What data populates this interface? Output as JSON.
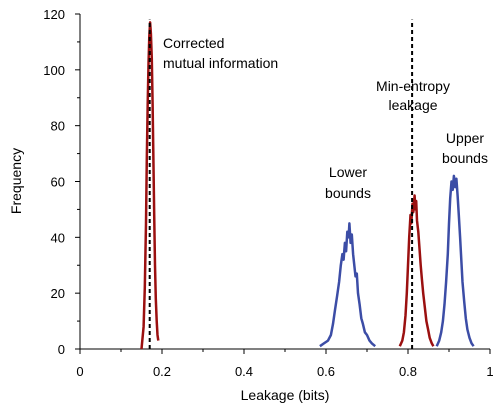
{
  "chart_data": {
    "type": "line",
    "xlabel": "Leakage (bits)",
    "ylabel": "Frequency",
    "xlim": [
      0,
      1
    ],
    "ylim": [
      0,
      120
    ],
    "x_ticks": [
      "0",
      "0.2",
      "0.4",
      "0.6",
      "0.8",
      "1"
    ],
    "y_ticks": [
      "0",
      "20",
      "40",
      "60",
      "80",
      "100",
      "120"
    ],
    "grid": false,
    "annotations": {
      "corrected_mi": [
        "Corrected",
        "mutual information"
      ],
      "min_entropy": [
        "Min-entropy",
        "leakage"
      ],
      "lower_bounds": [
        "Lower",
        "bounds"
      ],
      "upper_bounds": [
        "Upper",
        "bounds"
      ]
    },
    "reference_lines": [
      {
        "x": 0.17,
        "style": "dashed",
        "color": "#000000",
        "y_top": 118
      },
      {
        "x": 0.81,
        "style": "dashed",
        "color": "#000000",
        "y_top": 118
      }
    ],
    "colors": {
      "red": "#9b1010",
      "blue": "#3c4da6"
    },
    "series": [
      {
        "color": "#9b1010",
        "points": [
          [
            0.15,
            0
          ],
          [
            0.155,
            8
          ],
          [
            0.158,
            22
          ],
          [
            0.161,
            45
          ],
          [
            0.163,
            68
          ],
          [
            0.165,
            88
          ],
          [
            0.167,
            102
          ],
          [
            0.169,
            112
          ],
          [
            0.171,
            117
          ],
          [
            0.173,
            113
          ],
          [
            0.175,
            104
          ],
          [
            0.177,
            88
          ],
          [
            0.179,
            68
          ],
          [
            0.181,
            48
          ],
          [
            0.183,
            30
          ],
          [
            0.185,
            18
          ],
          [
            0.187,
            10
          ],
          [
            0.189,
            5
          ],
          [
            0.191,
            3
          ]
        ]
      },
      {
        "color": "#3c4da6",
        "points": [
          [
            0.585,
            1
          ],
          [
            0.595,
            2
          ],
          [
            0.605,
            3
          ],
          [
            0.612,
            5
          ],
          [
            0.617,
            9
          ],
          [
            0.622,
            14
          ],
          [
            0.627,
            19
          ],
          [
            0.632,
            24
          ],
          [
            0.636,
            30
          ],
          [
            0.64,
            34
          ],
          [
            0.643,
            32
          ],
          [
            0.646,
            38
          ],
          [
            0.649,
            35
          ],
          [
            0.652,
            42
          ],
          [
            0.655,
            40
          ],
          [
            0.657,
            45
          ],
          [
            0.66,
            38
          ],
          [
            0.663,
            41
          ],
          [
            0.666,
            34
          ],
          [
            0.669,
            30
          ],
          [
            0.672,
            26
          ],
          [
            0.675,
            27
          ],
          [
            0.678,
            20
          ],
          [
            0.682,
            16
          ],
          [
            0.686,
            11
          ],
          [
            0.69,
            9
          ],
          [
            0.695,
            6
          ],
          [
            0.7,
            5
          ],
          [
            0.706,
            3
          ],
          [
            0.712,
            2
          ],
          [
            0.72,
            1
          ]
        ]
      },
      {
        "color": "#9b1010",
        "points": [
          [
            0.78,
            1
          ],
          [
            0.786,
            3
          ],
          [
            0.79,
            6
          ],
          [
            0.794,
            12
          ],
          [
            0.797,
            20
          ],
          [
            0.8,
            30
          ],
          [
            0.803,
            40
          ],
          [
            0.806,
            48
          ],
          [
            0.808,
            45
          ],
          [
            0.811,
            52
          ],
          [
            0.813,
            49
          ],
          [
            0.816,
            55
          ],
          [
            0.818,
            50
          ],
          [
            0.82,
            53
          ],
          [
            0.822,
            46
          ],
          [
            0.825,
            42
          ],
          [
            0.828,
            36
          ],
          [
            0.831,
            30
          ],
          [
            0.834,
            25
          ],
          [
            0.837,
            20
          ],
          [
            0.841,
            15
          ],
          [
            0.845,
            10
          ],
          [
            0.849,
            7
          ],
          [
            0.853,
            4
          ],
          [
            0.858,
            2
          ],
          [
            0.862,
            1
          ]
        ]
      },
      {
        "color": "#3c4da6",
        "points": [
          [
            0.87,
            1
          ],
          [
            0.876,
            3
          ],
          [
            0.881,
            6
          ],
          [
            0.885,
            10
          ],
          [
            0.889,
            16
          ],
          [
            0.893,
            24
          ],
          [
            0.897,
            34
          ],
          [
            0.9,
            45
          ],
          [
            0.903,
            54
          ],
          [
            0.906,
            60
          ],
          [
            0.909,
            57
          ],
          [
            0.912,
            62
          ],
          [
            0.915,
            58
          ],
          [
            0.918,
            61
          ],
          [
            0.921,
            55
          ],
          [
            0.924,
            48
          ],
          [
            0.927,
            40
          ],
          [
            0.93,
            32
          ],
          [
            0.933,
            24
          ],
          [
            0.937,
            17
          ],
          [
            0.941,
            11
          ],
          [
            0.945,
            7
          ],
          [
            0.95,
            4
          ],
          [
            0.955,
            2
          ],
          [
            0.96,
            1
          ]
        ]
      }
    ]
  }
}
